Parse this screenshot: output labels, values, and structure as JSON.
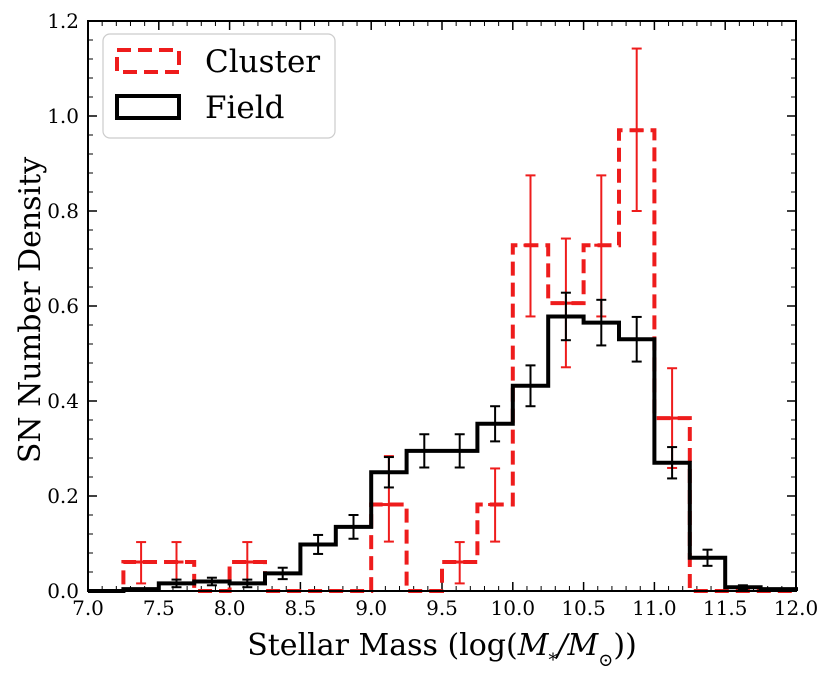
{
  "chart_data": {
    "type": "histogram",
    "title": "",
    "xlabel": "Stellar Mass (log(M*/M⊙))",
    "xlabel_parts": [
      "Stellar Mass (log(",
      "M",
      "*",
      "/",
      "M",
      "⊙",
      "))"
    ],
    "ylabel": "SN Number Density",
    "xlim": [
      7.0,
      12.0
    ],
    "ylim": [
      0.0,
      1.2
    ],
    "x_ticks": [
      7.0,
      7.5,
      8.0,
      8.5,
      9.0,
      9.5,
      10.0,
      10.5,
      11.0,
      11.5,
      12.0
    ],
    "x_tick_labels": [
      "7.0",
      "7.5",
      "8.0",
      "8.5",
      "9.0",
      "9.5",
      "10.0",
      "10.5",
      "11.0",
      "11.5",
      "12.0"
    ],
    "y_ticks": [
      0.0,
      0.2,
      0.4,
      0.6,
      0.8,
      1.0,
      1.2
    ],
    "y_tick_labels": [
      "0.0",
      "0.2",
      "0.4",
      "0.6",
      "0.8",
      "1.0",
      "1.2"
    ],
    "legend": {
      "position": "upper-left"
    },
    "bin_edges": [
      7.0,
      7.25,
      7.5,
      7.75,
      8.0,
      8.25,
      8.5,
      8.75,
      9.0,
      9.25,
      9.5,
      9.75,
      10.0,
      10.25,
      10.5,
      10.75,
      11.0,
      11.25,
      11.5,
      11.75,
      12.0
    ],
    "series": [
      {
        "name": "Cluster",
        "style": "dashed",
        "color": "#ee1c1c",
        "values": [
          0.0,
          0.061,
          0.061,
          0.0,
          0.061,
          0.0,
          0.0,
          0.0,
          0.182,
          0.0,
          0.061,
          0.182,
          0.728,
          0.606,
          0.728,
          0.97,
          0.364,
          0.0,
          0.0,
          0.0
        ],
        "errors_lo": [
          0.0,
          0.045,
          0.045,
          0.0,
          0.045,
          0.0,
          0.0,
          0.0,
          0.078,
          0.0,
          0.045,
          0.078,
          0.15,
          0.135,
          0.15,
          0.17,
          0.105,
          0.0,
          0.0,
          0.0
        ],
        "errors_hi": [
          0.0,
          0.042,
          0.042,
          0.0,
          0.042,
          0.0,
          0.0,
          0.0,
          0.102,
          0.0,
          0.042,
          0.076,
          0.147,
          0.136,
          0.147,
          0.172,
          0.105,
          0.0,
          0.0,
          0.0
        ]
      },
      {
        "name": "Field",
        "style": "solid",
        "color": "#000000",
        "values": [
          0.0,
          0.004,
          0.016,
          0.02,
          0.016,
          0.037,
          0.098,
          0.135,
          0.25,
          0.295,
          0.295,
          0.352,
          0.432,
          0.578,
          0.565,
          0.53,
          0.27,
          0.07,
          0.008,
          0.004
        ],
        "errors": [
          0.0,
          0.003,
          0.008,
          0.008,
          0.008,
          0.012,
          0.02,
          0.025,
          0.032,
          0.035,
          0.035,
          0.037,
          0.043,
          0.05,
          0.048,
          0.047,
          0.033,
          0.017,
          0.004,
          0.003
        ],
        "errorbar_bins": [
          2,
          3,
          4,
          5,
          6,
          7,
          8,
          9,
          10,
          11,
          12,
          13,
          14,
          15,
          16,
          17,
          18
        ]
      }
    ]
  }
}
